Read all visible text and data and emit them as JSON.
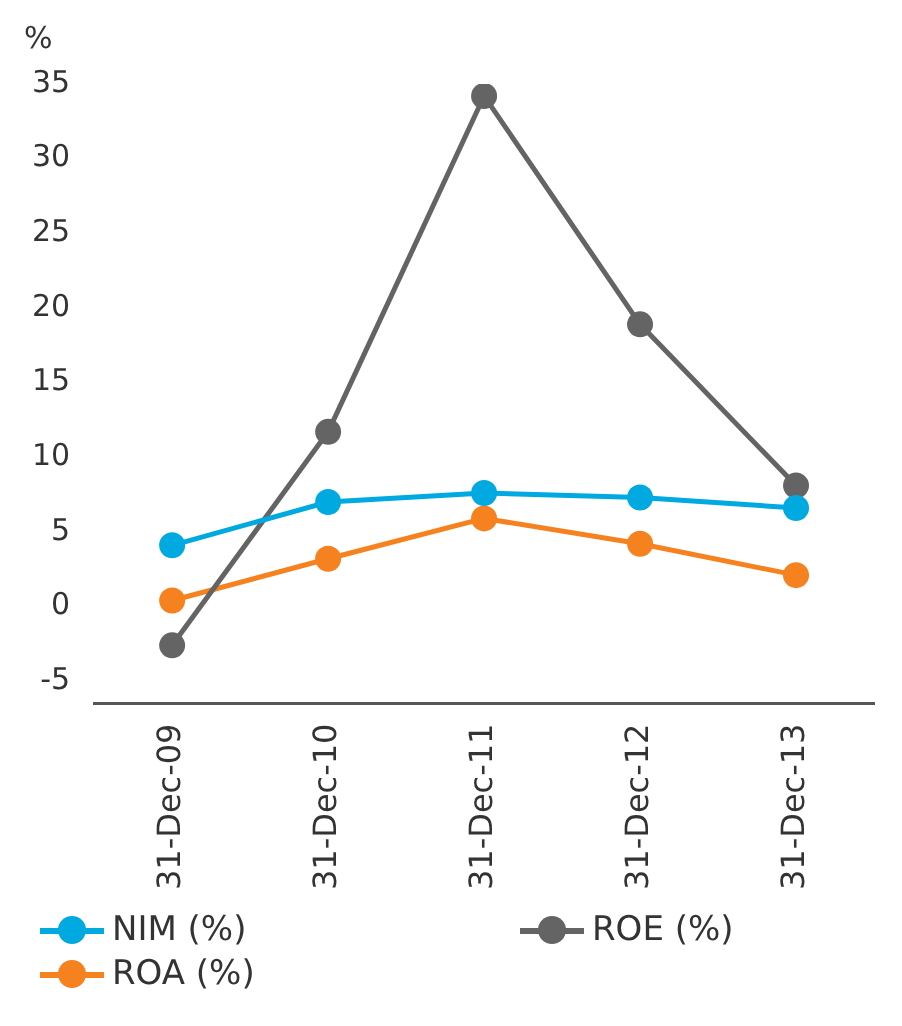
{
  "chart_data": {
    "type": "line",
    "ylabel": "%",
    "categories": [
      "31-Dec-09",
      "31-Dec-10",
      "31-Dec-11",
      "31-Dec-12",
      "31-Dec-13"
    ],
    "series": [
      {
        "name": "NIM (%)",
        "color": "#00a9e0",
        "values": [
          4.1,
          7.0,
          7.6,
          7.3,
          6.6
        ]
      },
      {
        "name": "ROE (%)",
        "color": "#646464",
        "values": [
          -2.6,
          11.7,
          34.2,
          18.9,
          8.1
        ]
      },
      {
        "name": "ROA (%)",
        "color": "#f5821f",
        "values": [
          0.4,
          3.2,
          5.9,
          4.2,
          2.1
        ]
      }
    ],
    "ylim": [
      -6.5,
      35
    ],
    "yticks": [
      -5,
      0,
      5,
      10,
      15,
      20,
      25,
      30,
      35
    ],
    "grid": false,
    "legend": "bottom",
    "marker": "circle",
    "line_style": "solid"
  }
}
